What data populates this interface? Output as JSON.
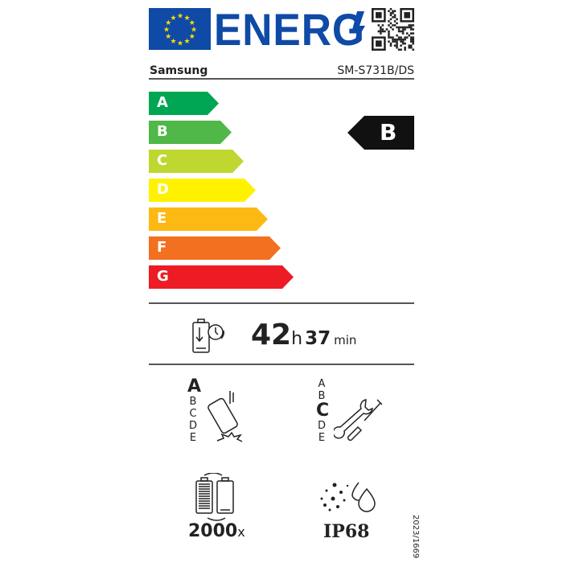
{
  "header": {
    "logo_text": "ENERG",
    "brand": "Samsung",
    "model": "SM-S731B/DS"
  },
  "scale": [
    {
      "letter": "A",
      "color": "#00a651"
    },
    {
      "letter": "B",
      "color": "#50b848"
    },
    {
      "letter": "C",
      "color": "#bfd730"
    },
    {
      "letter": "D",
      "color": "#fff200"
    },
    {
      "letter": "E",
      "color": "#fdb913"
    },
    {
      "letter": "F",
      "color": "#f37021"
    },
    {
      "letter": "G",
      "color": "#ed1c24"
    }
  ],
  "energy_class": "B",
  "battery_endurance": {
    "hours": "42",
    "h_unit": "h",
    "minutes": "37",
    "min_unit": "min"
  },
  "drop_resistance": {
    "classes": [
      "A",
      "B",
      "C",
      "D",
      "E"
    ],
    "selected": "A"
  },
  "repairability": {
    "classes": [
      "A",
      "B",
      "C",
      "D",
      "E"
    ],
    "selected": "C"
  },
  "battery_cycles": {
    "value": "2000",
    "unit": "x"
  },
  "ingress_protection": "IP68",
  "regulation": "2023/1669"
}
